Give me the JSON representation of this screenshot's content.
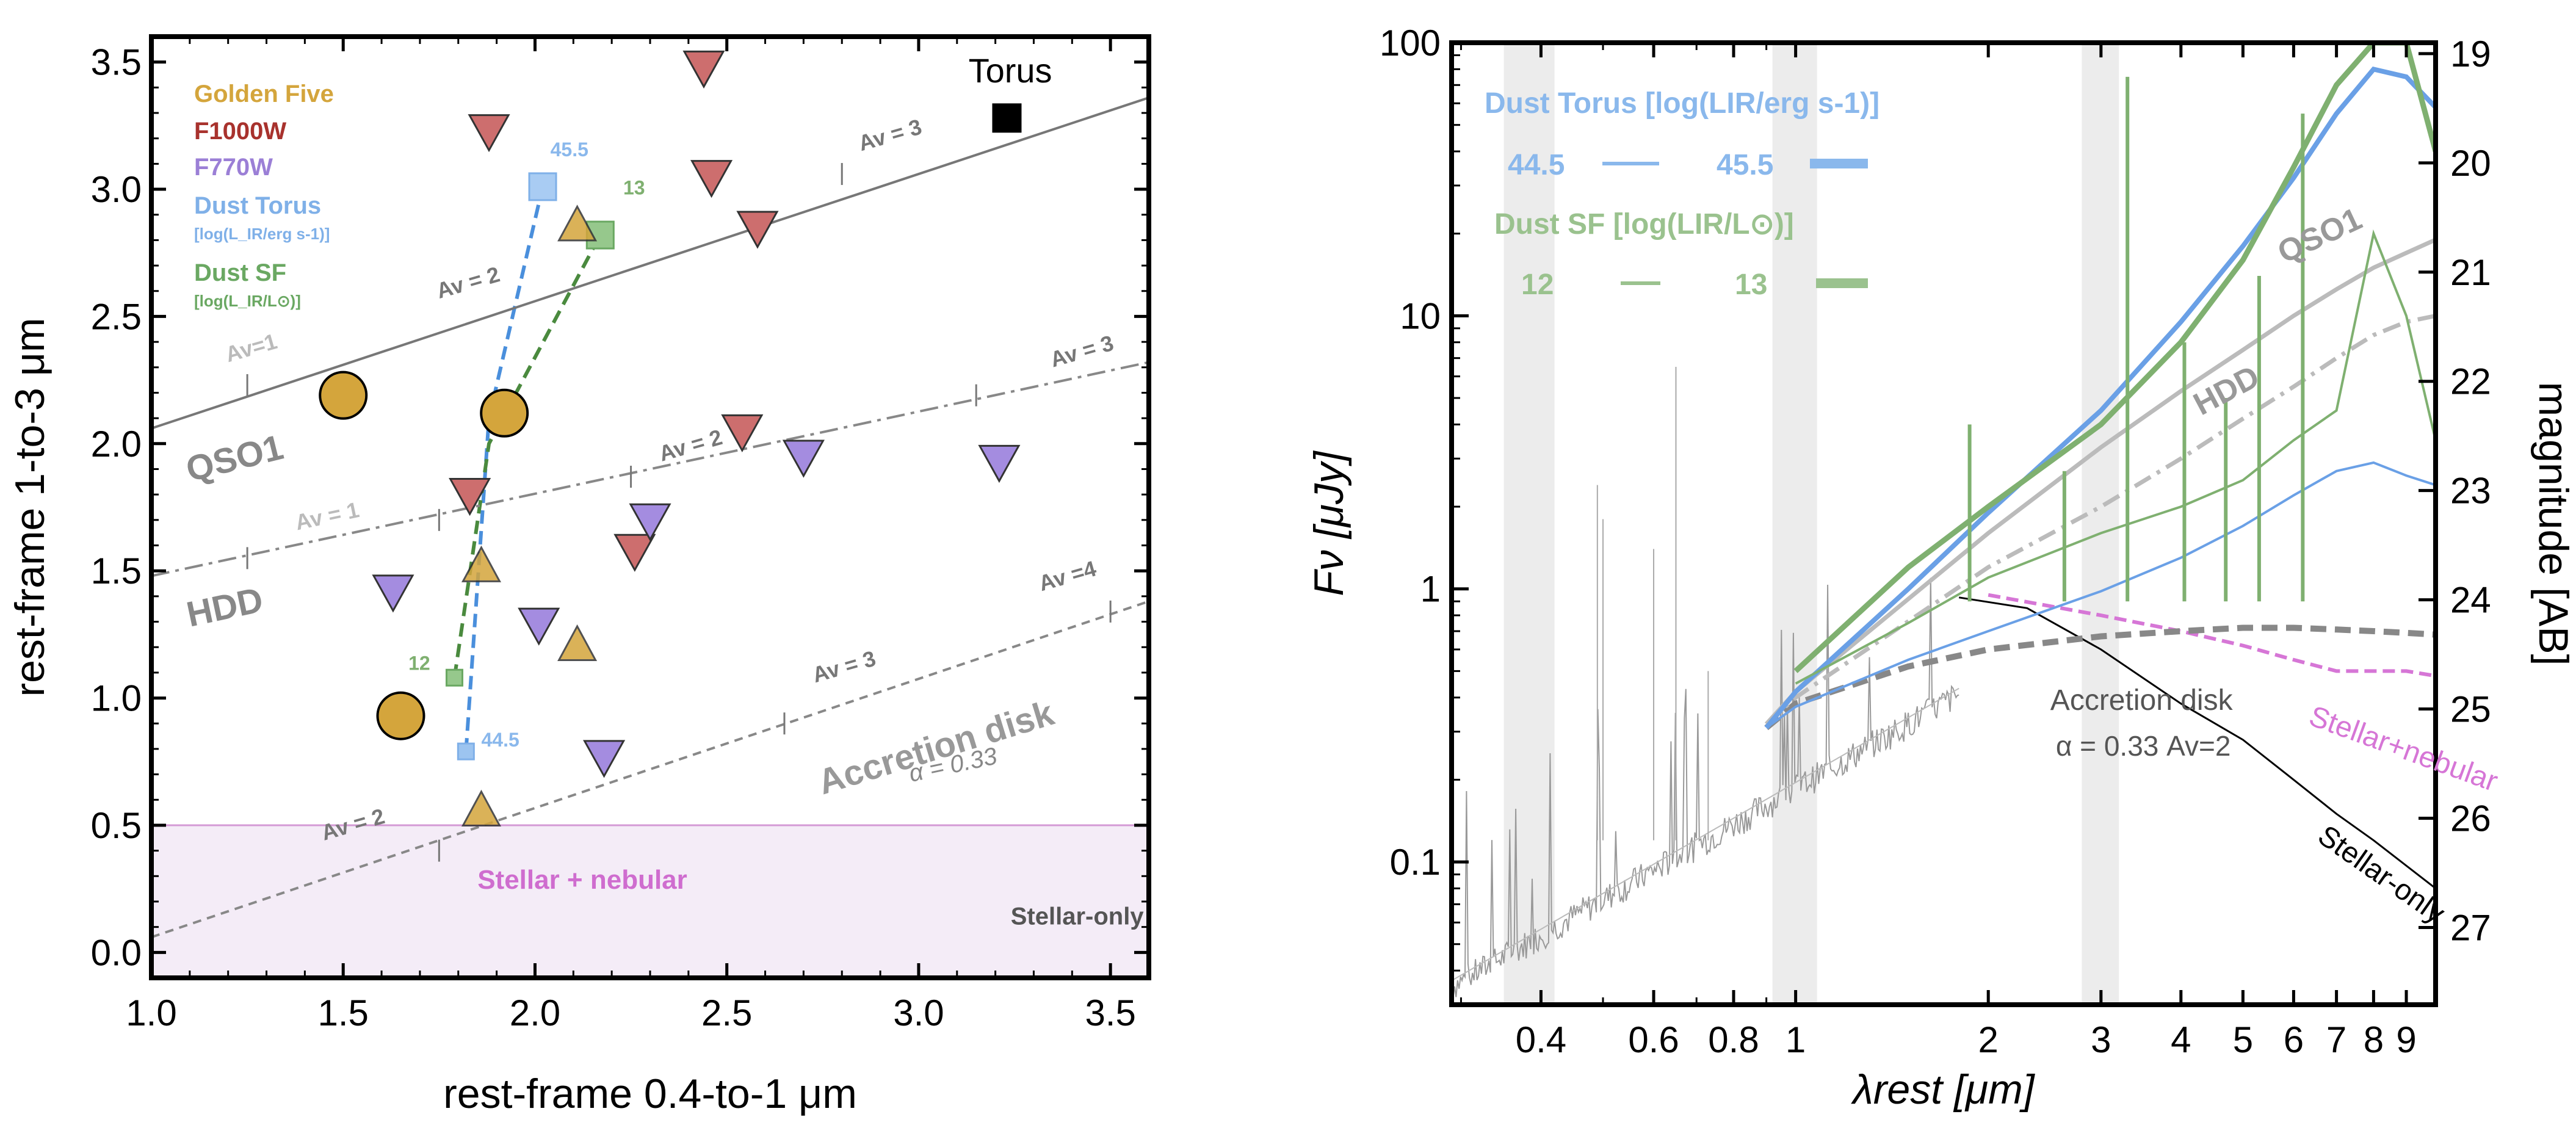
{
  "chart_data": [
    {
      "type": "scatter",
      "panel": "left",
      "title": "",
      "xlabel": "rest-frame 0.4-to-1 μm",
      "ylabel": "rest-frame 1-to-3 μm",
      "xlim": [
        1.0,
        3.6
      ],
      "ylim": [
        -0.1,
        3.6
      ],
      "xticks": [
        1.0,
        1.5,
        2.0,
        2.5,
        3.0,
        3.5
      ],
      "xtick_labels": [
        "1.0",
        "1.5",
        "2.0",
        "2.5",
        "3.0",
        "3.5"
      ],
      "yticks": [
        0.0,
        0.5,
        1.0,
        1.5,
        2.0,
        2.5,
        3.0,
        3.5
      ],
      "ytick_labels": [
        "0.0",
        "0.5",
        "1.0",
        "1.5",
        "2.0",
        "2.5",
        "3.0",
        "3.5"
      ],
      "legend": {
        "placement": "top-left",
        "entries": [
          {
            "label": "Golden Five",
            "color": "#d4a53c",
            "style": "bold"
          },
          {
            "label": "F1000W",
            "color": "#a8322d",
            "style": "bold"
          },
          {
            "label": "F770W",
            "color": "#9b7fd6",
            "style": "bold"
          },
          {
            "label": "Dust Torus",
            "color": "#7fb0e8",
            "style": "bold"
          },
          {
            "label": "[log(L_IR/erg s-1)]",
            "color": "#7fb0e8",
            "style": "small"
          },
          {
            "label": "Dust SF",
            "color": "#6aa862",
            "style": "bold"
          },
          {
            "label": "[log(L_IR/L⊙)]",
            "color": "#6aa862",
            "style": "small"
          }
        ]
      },
      "series": [
        {
          "name": "Golden Five",
          "marker": "circle",
          "color": "#d4a53c",
          "points": [
            [
              1.5,
              2.19
            ],
            [
              1.92,
              2.12
            ],
            [
              1.65,
              0.93
            ]
          ]
        },
        {
          "name": "F1000W",
          "marker": "triangle-down",
          "color": "#cd6e6e",
          "points": [
            [
              2.44,
              3.48
            ],
            [
              1.88,
              3.23
            ],
            [
              2.46,
              3.05
            ],
            [
              2.58,
              2.85
            ],
            [
              2.54,
              2.05
            ],
            [
              1.83,
              1.8
            ],
            [
              2.26,
              1.58
            ]
          ]
        },
        {
          "name": "F770W",
          "marker": "triangle-down",
          "color": "#a48ce0",
          "points": [
            [
              2.7,
              1.95
            ],
            [
              3.21,
              1.93
            ],
            [
              2.3,
              1.7
            ],
            [
              1.63,
              1.42
            ],
            [
              2.01,
              1.29
            ],
            [
              2.18,
              0.77
            ]
          ]
        },
        {
          "name": "Golden Five (triangles)",
          "marker": "triangle",
          "color": "#d4a53c",
          "points": [
            [
              2.11,
              2.86
            ],
            [
              1.86,
              1.52
            ],
            [
              2.11,
              1.21
            ],
            [
              1.86,
              0.56
            ]
          ]
        },
        {
          "name": "Torus",
          "marker": "square",
          "color": "#000000",
          "points": [
            [
              3.23,
              3.28
            ]
          ]
        },
        {
          "name": "Dust Torus track",
          "style": "dashed",
          "color": "#4a8fdc",
          "points": [
            [
              1.82,
              0.79
            ],
            [
              1.88,
              2.1
            ],
            [
              2.02,
              3.01
            ]
          ],
          "end_labels": [
            "44.5",
            "45.5"
          ]
        },
        {
          "name": "Dust SF track",
          "style": "dashed",
          "color": "#4a8a3e",
          "points": [
            [
              1.79,
              1.08
            ],
            [
              1.88,
              2.0
            ],
            [
              2.17,
              2.82
            ]
          ],
          "end_labels": [
            "12",
            "13"
          ]
        },
        {
          "name": "QSO1 line",
          "style": "solid",
          "color": "#777777",
          "points": [
            [
              1.0,
              2.06
            ],
            [
              3.6,
              3.36
            ]
          ]
        },
        {
          "name": "HDD line",
          "style": "dash-dot",
          "color": "#888888",
          "points": [
            [
              1.0,
              1.48
            ],
            [
              3.6,
              2.32
            ]
          ]
        },
        {
          "name": "Accretion disk line",
          "style": "dashed",
          "color": "#888888",
          "points": [
            [
              1.0,
              0.06
            ],
            [
              3.6,
              1.38
            ]
          ]
        }
      ],
      "shaded_region": {
        "label": "Stellar + nebular",
        "y_range": [
          -0.1,
          0.5
        ],
        "color": "#f4ecf7",
        "edge_color": "#d49ad6"
      },
      "annotations": [
        {
          "text": "Torus",
          "at": [
            3.13,
            3.42
          ]
        },
        {
          "text": "QSO1",
          "at": [
            1.1,
            1.85
          ]
        },
        {
          "text": "HDD",
          "at": [
            1.1,
            1.28
          ]
        },
        {
          "text": "Accretion disk",
          "at": [
            2.75,
            0.62
          ]
        },
        {
          "text": "α = 0.33",
          "at": [
            2.98,
            0.67
          ]
        },
        {
          "text": "Stellar + nebular",
          "at": [
            1.85,
            0.25
          ]
        },
        {
          "text": "Stellar-only",
          "at": [
            3.24,
            0.11
          ]
        },
        {
          "text": "Av = 3",
          "at": [
            2.85,
            3.15
          ]
        },
        {
          "text": "Av = 2",
          "at": [
            1.75,
            2.57
          ]
        },
        {
          "text": "Av=1",
          "at": [
            1.2,
            2.32
          ]
        },
        {
          "text": "Av = 3",
          "at": [
            3.35,
            2.3
          ]
        },
        {
          "text": "Av = 2",
          "at": [
            2.33,
            1.93
          ]
        },
        {
          "text": "Av = 1",
          "at": [
            1.38,
            1.66
          ]
        },
        {
          "text": "Av =4",
          "at": [
            3.32,
            1.42
          ]
        },
        {
          "text": "Av = 3",
          "at": [
            2.73,
            1.06
          ]
        },
        {
          "text": "Av = 2",
          "at": [
            1.45,
            0.44
          ]
        }
      ]
    },
    {
      "type": "line",
      "panel": "right",
      "title": "",
      "xscale": "log",
      "yscale": "log",
      "xlabel": "λrest [μm]",
      "ylabel": "Fν [μJy]",
      "ylabel_right": "magnitude [AB]",
      "xlim": [
        0.29,
        10.0
      ],
      "ylim": [
        0.03,
        100
      ],
      "xticks": [
        0.4,
        0.6,
        0.8,
        1,
        2,
        3,
        4,
        5,
        6,
        7,
        8,
        9
      ],
      "xtick_labels": [
        "0.4",
        "0.6",
        "0.8",
        "1",
        "2",
        "3",
        "4",
        "5",
        "6",
        "7",
        "8",
        "9"
      ],
      "yticks": [
        0.1,
        1,
        10,
        100
      ],
      "ytick_labels": [
        "0.1",
        "1",
        "10",
        "100"
      ],
      "right_ticks": [
        19,
        20,
        21,
        22,
        23,
        24,
        25,
        26,
        27
      ],
      "right_tick_labels": [
        "19",
        "20",
        "21",
        "22",
        "23",
        "24",
        "25",
        "26",
        "27"
      ],
      "shaded_bands": [
        [
          0.35,
          0.42
        ],
        [
          0.92,
          1.08
        ],
        [
          2.8,
          3.2
        ]
      ],
      "legend": {
        "placement": "top-left",
        "torus_title": "Dust Torus [log(LIR/erg s-1)]",
        "torus_entries": [
          "44.5",
          "45.5"
        ],
        "sf_title": "Dust SF [log(LIR/L⊙)]",
        "sf_entries": [
          "12",
          "13"
        ]
      },
      "series": [
        {
          "name": "Stellar-only",
          "color": "#000000",
          "x": [
            1.8,
            2.3,
            3,
            4,
            5,
            6,
            7,
            8,
            10
          ],
          "y": [
            0.93,
            0.85,
            0.6,
            0.38,
            0.28,
            0.2,
            0.15,
            0.12,
            0.08
          ]
        },
        {
          "name": "Stellar+nebular",
          "color": "#d676d6",
          "x": [
            2,
            3,
            4,
            5,
            6,
            7,
            8,
            9,
            10
          ],
          "y": [
            0.95,
            0.8,
            0.7,
            0.62,
            0.55,
            0.5,
            0.5,
            0.5,
            0.48
          ]
        },
        {
          "name": "Accretion disk",
          "color": "#888888",
          "x": [
            0.9,
            1,
            1.5,
            2,
            3,
            4,
            5,
            6,
            7,
            8,
            9,
            10
          ],
          "y": [
            0.31,
            0.38,
            0.52,
            0.6,
            0.67,
            0.7,
            0.72,
            0.72,
            0.71,
            0.7,
            0.69,
            0.68
          ]
        },
        {
          "name": "HDD",
          "color": "#bbbbbb",
          "x": [
            0.9,
            1,
            2,
            3,
            4,
            5,
            6,
            7,
            8,
            9,
            10
          ],
          "y": [
            0.32,
            0.4,
            1.2,
            2.0,
            3.0,
            4.2,
            5.5,
            7.0,
            8.5,
            9.5,
            10.0
          ]
        },
        {
          "name": "QSO1",
          "color": "#bbbbbb",
          "x": [
            0.9,
            1,
            2,
            3,
            4,
            5,
            6,
            7,
            8,
            9,
            10
          ],
          "y": [
            0.32,
            0.42,
            1.6,
            3.3,
            5.3,
            7.5,
            10,
            12.5,
            15,
            17,
            19
          ]
        },
        {
          "name": "Dust Torus 44.5",
          "color": "#6aa0e6",
          "x": [
            0.9,
            1,
            1.5,
            2,
            3,
            4,
            5,
            6,
            7,
            8,
            9,
            10
          ],
          "y": [
            0.31,
            0.37,
            0.55,
            0.7,
            0.98,
            1.3,
            1.7,
            2.2,
            2.7,
            2.9,
            2.6,
            2.4
          ]
        },
        {
          "name": "Dust Torus 45.5",
          "color": "#6aa0e6",
          "x": [
            0.9,
            1,
            1.5,
            2,
            3,
            4,
            5,
            6,
            7,
            8,
            9,
            10
          ],
          "y": [
            0.31,
            0.42,
            1.0,
            1.9,
            4.5,
            9.5,
            18,
            32,
            55,
            80,
            75,
            58
          ]
        },
        {
          "name": "Dust SF 12",
          "color": "#7fb070",
          "x": [
            1,
            1.5,
            2,
            3,
            4,
            5,
            6,
            7,
            8,
            9,
            10
          ],
          "y": [
            0.45,
            0.75,
            1.1,
            1.6,
            2.0,
            2.5,
            3.5,
            4.5,
            20,
            10,
            3.5
          ]
        },
        {
          "name": "Dust SF 13",
          "color": "#7fb070",
          "x": [
            1,
            1.5,
            2,
            3,
            4,
            5,
            6,
            7,
            8,
            9,
            10
          ],
          "y": [
            0.5,
            1.2,
            2.0,
            4.0,
            8.0,
            16,
            35,
            70,
            100,
            100,
            40
          ]
        }
      ],
      "annotations": [
        {
          "text": "QSO1",
          "at": [
            5.8,
            15.5
          ]
        },
        {
          "text": "HDD",
          "at": [
            4.3,
            4.3
          ]
        },
        {
          "text": "Accretion disk",
          "at": [
            2.5,
            0.36
          ]
        },
        {
          "text": "α = 0.33  Av=2",
          "at": [
            2.55,
            0.245
          ]
        },
        {
          "text": "Stellar+nebular",
          "at": [
            6.3,
            0.32
          ]
        },
        {
          "text": "Stellar-only",
          "at": [
            6.5,
            0.12
          ]
        }
      ]
    }
  ]
}
